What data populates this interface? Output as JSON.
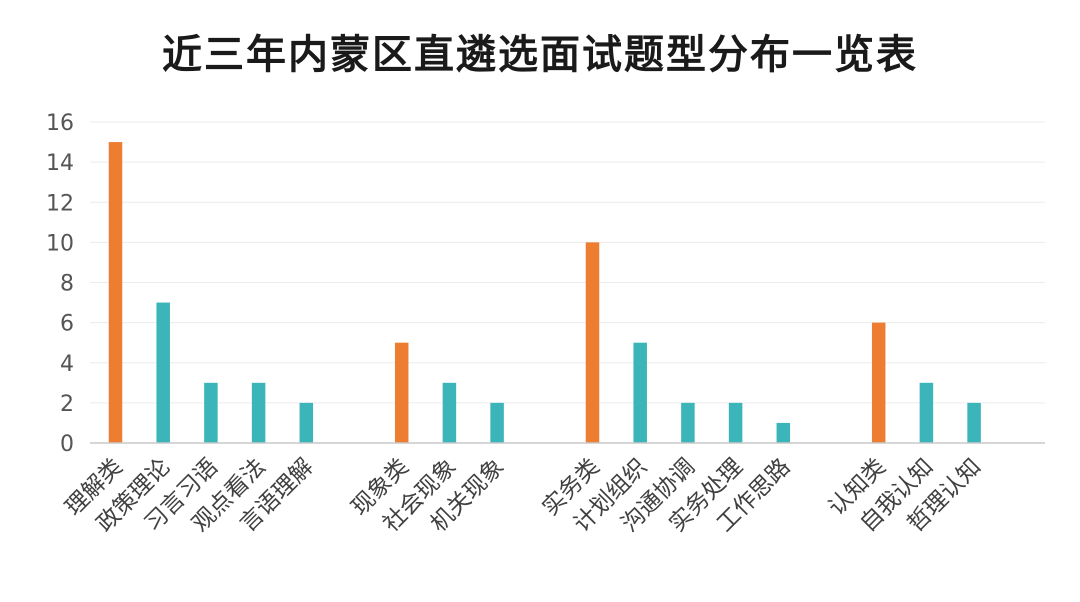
{
  "chart_data": {
    "type": "bar",
    "title": "近三年内蒙区直遴选面试题型分布一览表",
    "ylim": [
      0,
      16
    ],
    "yticks": [
      0,
      2,
      4,
      6,
      8,
      10,
      12,
      14,
      16
    ],
    "grid": true,
    "colors": {
      "category": "#ed7d31",
      "subtype": "#3bb5b9"
    },
    "groups": [
      {
        "bars": [
          {
            "label": "理解类",
            "value": 15,
            "kind": "category"
          },
          {
            "label": "政策理论",
            "value": 7,
            "kind": "subtype"
          },
          {
            "label": "习言习语",
            "value": 3,
            "kind": "subtype"
          },
          {
            "label": "观点看法",
            "value": 3,
            "kind": "subtype"
          },
          {
            "label": "言语理解",
            "value": 2,
            "kind": "subtype"
          }
        ]
      },
      {
        "bars": [
          {
            "label": "现象类",
            "value": 5,
            "kind": "category"
          },
          {
            "label": "社会现象",
            "value": 3,
            "kind": "subtype"
          },
          {
            "label": "机关现象",
            "value": 2,
            "kind": "subtype"
          }
        ]
      },
      {
        "bars": [
          {
            "label": "实务类",
            "value": 10,
            "kind": "category"
          },
          {
            "label": "计划组织",
            "value": 5,
            "kind": "subtype"
          },
          {
            "label": "沟通协调",
            "value": 2,
            "kind": "subtype"
          },
          {
            "label": "实务处理",
            "value": 2,
            "kind": "subtype"
          },
          {
            "label": "工作思路",
            "value": 1,
            "kind": "subtype"
          }
        ]
      },
      {
        "bars": [
          {
            "label": "认知类",
            "value": 6,
            "kind": "category"
          },
          {
            "label": "自我认知",
            "value": 3,
            "kind": "subtype"
          },
          {
            "label": "哲理认知",
            "value": 2,
            "kind": "subtype"
          }
        ]
      }
    ]
  }
}
